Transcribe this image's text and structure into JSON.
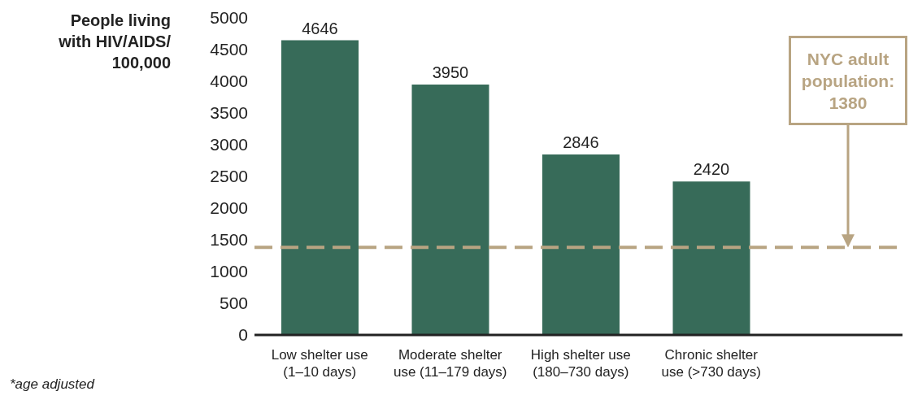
{
  "chart_data": {
    "type": "bar",
    "ylabel": "People living with HIV/AIDS/ 100,000",
    "categories": [
      "Low shelter use (1–10 days)",
      "Moderate shelter use (11–179 days)",
      "High shelter use (180–730 days)",
      "Chronic shelter use (>730 days)"
    ],
    "values": [
      4646,
      3950,
      2846,
      2420
    ],
    "color": "#376b59",
    "ylim": [
      0,
      5000
    ],
    "yticks": [
      0,
      500,
      1000,
      1500,
      2000,
      2500,
      3000,
      3500,
      4000,
      4500,
      5000
    ],
    "grid": false,
    "data_labels": true,
    "ref_lines": [
      {
        "axis": "y",
        "value": 1380,
        "label": "NYC adult population: 1380",
        "color": "#b8a482",
        "line_style": "dashed"
      }
    ],
    "annotations": [
      "*age adjusted"
    ]
  }
}
